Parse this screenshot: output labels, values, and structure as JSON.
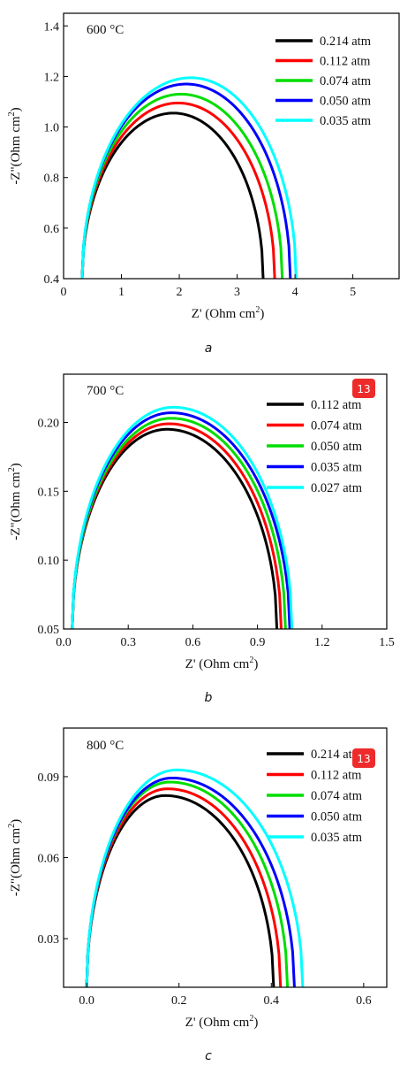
{
  "chart_data": [
    {
      "type": "line",
      "panel_caption": "a",
      "annotation": "600 °C",
      "xlabel": "Z' (Ohm cm",
      "xlabel_sup": "2",
      "xlabel_end": ")",
      "ylabel": "-Z\"(Ohm cm",
      "ylabel_sup": "2",
      "ylabel_end": ")",
      "xlim": [
        0,
        5.8
      ],
      "ylim": [
        0.4,
        1.45
      ],
      "xticks": [
        0,
        1,
        2,
        3,
        4,
        5
      ],
      "xtick_labels": [
        "0",
        "1",
        "2",
        "3",
        "4",
        "5"
      ],
      "yticks": [
        0.4,
        0.6,
        0.8,
        1.0,
        1.2,
        1.4
      ],
      "ytick_labels": [
        "0.4",
        "0.6",
        "0.8",
        "1.0",
        "1.2",
        "1.4"
      ],
      "legend_position": "top-right",
      "badge": "",
      "series": [
        {
          "name": "0.214 atm",
          "color": "#000000",
          "x0": 0.32,
          "x1": 3.45,
          "apex_x": 1.9,
          "apex_y": 1.055
        },
        {
          "name": "0.112 atm",
          "color": "#ff0000",
          "x0": 0.32,
          "x1": 3.65,
          "apex_x": 1.98,
          "apex_y": 1.095
        },
        {
          "name": "0.074 atm",
          "color": "#00dd00",
          "x0": 0.32,
          "x1": 3.78,
          "apex_x": 2.03,
          "apex_y": 1.13
        },
        {
          "name": "0.050 atm",
          "color": "#0000ff",
          "x0": 0.32,
          "x1": 3.92,
          "apex_x": 2.12,
          "apex_y": 1.17
        },
        {
          "name": "0.035 atm",
          "color": "#00ffff",
          "x0": 0.32,
          "x1": 4.02,
          "apex_x": 2.2,
          "apex_y": 1.195
        }
      ]
    },
    {
      "type": "line",
      "panel_caption": "b",
      "annotation": "700 °C",
      "xlabel": "Z' (Ohm cm",
      "xlabel_sup": "2",
      "xlabel_end": ")",
      "ylabel": "-Z\"(Ohm cm",
      "ylabel_sup": "2",
      "ylabel_end": ")",
      "xlim": [
        0,
        1.5
      ],
      "ylim": [
        0.05,
        0.235
      ],
      "xticks": [
        0,
        0.3,
        0.6,
        0.9,
        1.2,
        1.5
      ],
      "xtick_labels": [
        "0.0",
        "0.3",
        "0.6",
        "0.9",
        "1.2",
        "1.5"
      ],
      "yticks": [
        0.05,
        0.1,
        0.15,
        0.2
      ],
      "ytick_labels": [
        "0.05",
        "0.10",
        "0.15",
        "0.20"
      ],
      "legend_position": "top-right",
      "badge": "13",
      "series": [
        {
          "name": "0.112 atm",
          "color": "#000000",
          "x0": 0.04,
          "x1": 0.99,
          "apex_x": 0.48,
          "apex_y": 0.195
        },
        {
          "name": "0.074 atm",
          "color": "#ff0000",
          "x0": 0.04,
          "x1": 1.01,
          "apex_x": 0.49,
          "apex_y": 0.199
        },
        {
          "name": "0.050 atm",
          "color": "#00dd00",
          "x0": 0.04,
          "x1": 1.03,
          "apex_x": 0.5,
          "apex_y": 0.203
        },
        {
          "name": "0.035 atm",
          "color": "#0000ff",
          "x0": 0.04,
          "x1": 1.05,
          "apex_x": 0.5,
          "apex_y": 0.207
        },
        {
          "name": "0.027 atm",
          "color": "#00ffff",
          "x0": 0.04,
          "x1": 1.06,
          "apex_x": 0.51,
          "apex_y": 0.211
        }
      ]
    },
    {
      "type": "line",
      "panel_caption": "c",
      "annotation": "800 °C",
      "xlabel": "Z' (Ohm cm",
      "xlabel_sup": "2",
      "xlabel_end": ")",
      "ylabel": "-Z\"(Ohm cm",
      "ylabel_sup": "2",
      "ylabel_end": ")",
      "xlim": [
        -0.05,
        0.65
      ],
      "ylim": [
        0.012,
        0.108
      ],
      "xticks": [
        0,
        0.2,
        0.4,
        0.6
      ],
      "xtick_labels": [
        "0.0",
        "0.2",
        "0.4",
        "0.6"
      ],
      "yticks": [
        0.03,
        0.06,
        0.09
      ],
      "ytick_labels": [
        "0.03",
        "0.06",
        "0.09"
      ],
      "legend_position": "top-right",
      "badge": "13",
      "series": [
        {
          "name": "0.214 atm",
          "color": "#000000",
          "x0": 0.0,
          "x1": 0.405,
          "apex_x": 0.17,
          "apex_y": 0.083
        },
        {
          "name": "0.112 atm",
          "color": "#ff0000",
          "x0": 0.0,
          "x1": 0.42,
          "apex_x": 0.175,
          "apex_y": 0.0855
        },
        {
          "name": "0.074 atm",
          "color": "#00dd00",
          "x0": 0.0,
          "x1": 0.435,
          "apex_x": 0.18,
          "apex_y": 0.088
        },
        {
          "name": "0.050 atm",
          "color": "#0000ff",
          "x0": 0.0,
          "x1": 0.45,
          "apex_x": 0.185,
          "apex_y": 0.0895
        },
        {
          "name": "0.035 atm",
          "color": "#00ffff",
          "x0": 0.0,
          "x1": 0.468,
          "apex_x": 0.195,
          "apex_y": 0.0925
        }
      ]
    }
  ]
}
